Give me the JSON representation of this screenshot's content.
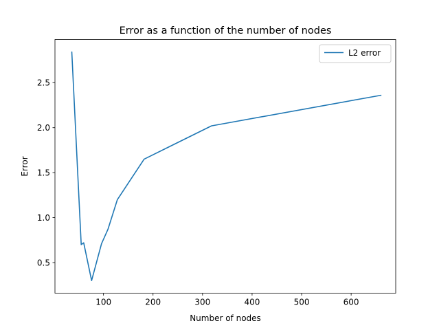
{
  "chart_data": {
    "type": "line",
    "title": "Error as a function of the number of nodes",
    "xlabel": "Number of nodes",
    "ylabel": "Error",
    "xlim": [
      2,
      690
    ],
    "ylim": [
      0.16,
      2.98
    ],
    "xticks": [
      100,
      200,
      300,
      400,
      500,
      600
    ],
    "yticks": [
      0.5,
      1.0,
      1.5,
      2.0,
      2.5
    ],
    "ytick_labels": [
      "0.5",
      "1.0",
      "1.5",
      "2.0",
      "2.5"
    ],
    "grid": false,
    "legend": {
      "placement": "top-right",
      "entries": [
        "L2 error"
      ]
    },
    "series": [
      {
        "name": "L2 error",
        "color": "#1f77b4",
        "x": [
          36,
          55,
          60,
          76,
          96,
          109,
          128,
          182,
          318,
          660
        ],
        "y": [
          2.84,
          0.7,
          0.72,
          0.3,
          0.71,
          0.87,
          1.2,
          1.65,
          2.02,
          2.36
        ]
      }
    ]
  }
}
